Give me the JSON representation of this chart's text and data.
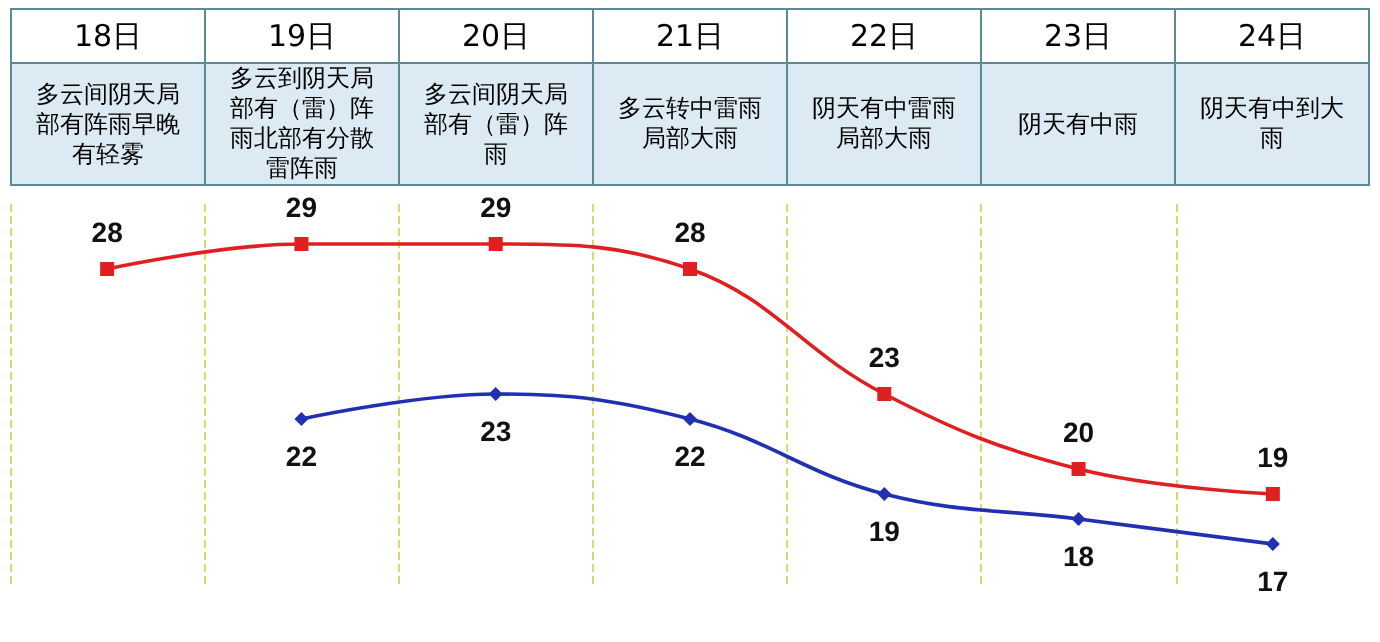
{
  "chart_data": {
    "type": "line",
    "categories": [
      "18日",
      "19日",
      "20日",
      "21日",
      "22日",
      "23日",
      "24日"
    ],
    "annotations": [
      "多云间阴天局部有阵雨早晚有轻雾",
      "多云到阴天局部有（雷）阵雨北部有分散雷阵雨",
      "多云间阴天局部有（雷）阵雨",
      "多云转中雷雨局部大雨",
      "阴天有中雷雨局部大雨",
      "阴天有中雨",
      "阴天有中到大雨"
    ],
    "series": [
      {
        "color": "#e02020",
        "marker": "square",
        "values": [
          28,
          29,
          29,
          28,
          23,
          20,
          19
        ]
      },
      {
        "color": "#2030b0",
        "marker": "diamond",
        "values": [
          null,
          22,
          23,
          22,
          19,
          18,
          17
        ]
      }
    ],
    "data_labels": true,
    "grid": "x"
  }
}
